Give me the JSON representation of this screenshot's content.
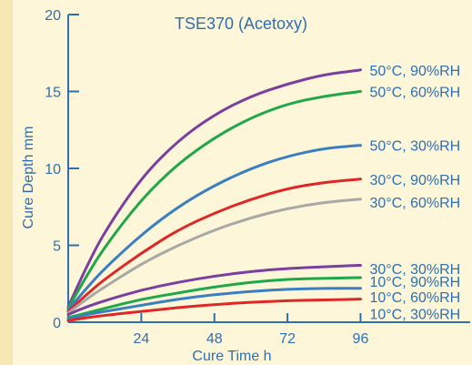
{
  "colors": {
    "background": "#fdf6d8",
    "axis": "#2e6fb3",
    "text": "#2e6fb3"
  },
  "chart_data": {
    "type": "line",
    "title": "TSE370 (Acetoxy)",
    "xlabel": "Cure Time  h",
    "ylabel": "Cure Depth  mm",
    "xlim": [
      0,
      132
    ],
    "ylim": [
      0,
      20
    ],
    "x_ticks": [
      24,
      48,
      72,
      96
    ],
    "y_ticks": [
      0,
      5,
      10,
      15,
      20
    ],
    "grid": false,
    "x": [
      0,
      6,
      12,
      24,
      36,
      48,
      60,
      72,
      84,
      96
    ],
    "series": [
      {
        "name": "50°C, 90%RH",
        "color": "#7b3fa0",
        "label_y": 16.4,
        "values": [
          1.0,
          3.6,
          5.9,
          9.4,
          11.8,
          13.5,
          14.7,
          15.5,
          16.1,
          16.4
        ]
      },
      {
        "name": "50°C, 60%RH",
        "color": "#1ea84a",
        "label_y": 15.0,
        "values": [
          0.9,
          3.0,
          4.9,
          8.0,
          10.3,
          12.0,
          13.3,
          14.2,
          14.7,
          15.0
        ]
      },
      {
        "name": "50°C, 30%RH",
        "color": "#3a7fc1",
        "label_y": 11.5,
        "values": [
          0.8,
          2.2,
          3.5,
          5.7,
          7.5,
          8.9,
          10.0,
          10.8,
          11.3,
          11.5
        ]
      },
      {
        "name": "30°C, 90%RH",
        "color": "#e02727",
        "label_y": 9.3,
        "values": [
          0.7,
          1.8,
          2.8,
          4.5,
          6.0,
          7.1,
          8.0,
          8.7,
          9.1,
          9.3
        ]
      },
      {
        "name": "30°C, 60%RH",
        "color": "#a8a8a8",
        "label_y": 7.8,
        "values": [
          0.6,
          1.5,
          2.3,
          3.8,
          5.0,
          6.0,
          6.8,
          7.4,
          7.8,
          8.0
        ]
      },
      {
        "name": "30°C, 30%RH",
        "color": "#7b3fa0",
        "label_y": 3.5,
        "values": [
          0.5,
          1.0,
          1.4,
          2.1,
          2.6,
          3.0,
          3.3,
          3.5,
          3.6,
          3.7
        ]
      },
      {
        "name": "10°C, 90%RH",
        "color": "#1ea84a",
        "label_y": 2.65,
        "values": [
          0.3,
          0.6,
          0.9,
          1.5,
          1.9,
          2.3,
          2.6,
          2.8,
          2.85,
          2.9
        ]
      },
      {
        "name": "10°C, 60%RH",
        "color": "#3a7fc1",
        "label_y": 1.65,
        "values": [
          0.2,
          0.5,
          0.7,
          1.1,
          1.5,
          1.8,
          2.0,
          2.15,
          2.2,
          2.2
        ]
      },
      {
        "name": "10°C, 30%RH",
        "color": "#e02727",
        "label_y": 0.55,
        "values": [
          0.1,
          0.3,
          0.45,
          0.7,
          0.95,
          1.15,
          1.3,
          1.4,
          1.45,
          1.5
        ]
      }
    ]
  }
}
